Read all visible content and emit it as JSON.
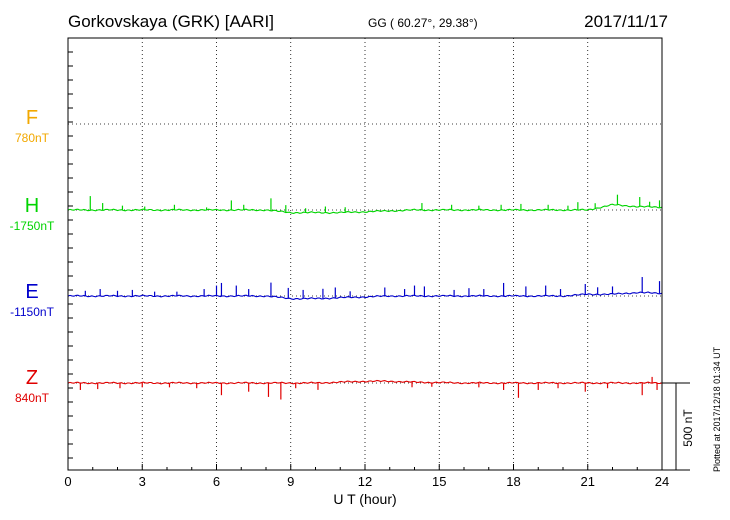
{
  "header": {
    "station": "Gorkovskaya (GRK)  [AARI]",
    "coords": "GG ( 60.27°,  29.38°)",
    "date": "2017/11/17"
  },
  "components": [
    {
      "letter": "F",
      "baseline": "780nT",
      "color": "#f2a800"
    },
    {
      "letter": "H",
      "baseline": "-1750nT",
      "color": "#00d400"
    },
    {
      "letter": "E",
      "baseline": "-1150nT",
      "color": "#0000cc"
    },
    {
      "letter": "Z",
      "baseline": "840nT",
      "color": "#e00000"
    }
  ],
  "scale_bar": "500 nT",
  "plotted_note": "Plotted at 2017/12/18 01:34 UT",
  "chart_data": {
    "type": "line",
    "xlabel": "U T (hour)",
    "xlim": [
      0,
      24
    ],
    "xticks": [
      "0",
      "3",
      "6",
      "9",
      "12",
      "15",
      "18",
      "21",
      "24"
    ],
    "grid": true,
    "series": [
      {
        "name": "F",
        "x": [],
        "values": []
      },
      {
        "name": "H",
        "x": [
          0,
          1,
          2,
          3,
          4,
          5,
          6,
          7,
          8,
          9,
          10,
          11,
          12,
          13,
          14,
          15,
          16,
          17,
          18,
          19,
          20,
          21,
          22,
          23,
          24
        ],
        "values": [
          0,
          0,
          0,
          0,
          0,
          0,
          0,
          0,
          0,
          -15,
          -15,
          -15,
          -10,
          -5,
          0,
          0,
          0,
          0,
          0,
          0,
          0,
          0,
          30,
          20,
          15
        ],
        "spikes": [
          [
            0.9,
            80
          ],
          [
            1.4,
            40
          ],
          [
            2.2,
            25
          ],
          [
            3.1,
            20
          ],
          [
            4.3,
            30
          ],
          [
            5.6,
            15
          ],
          [
            6.6,
            55
          ],
          [
            7.1,
            30
          ],
          [
            8.2,
            70
          ],
          [
            8.8,
            40
          ],
          [
            9.6,
            25
          ],
          [
            10.4,
            35
          ],
          [
            11.2,
            30
          ],
          [
            14.3,
            40
          ],
          [
            15.5,
            30
          ],
          [
            16.6,
            25
          ],
          [
            17.5,
            30
          ],
          [
            18.3,
            35
          ],
          [
            19.4,
            30
          ],
          [
            20.2,
            25
          ],
          [
            20.6,
            45
          ],
          [
            21.3,
            30
          ],
          [
            22.2,
            60
          ],
          [
            23.1,
            55
          ],
          [
            23.5,
            30
          ],
          [
            23.9,
            40
          ]
        ]
      },
      {
        "name": "E",
        "x": [
          0,
          1,
          2,
          3,
          4,
          5,
          6,
          7,
          8,
          9,
          10,
          11,
          12,
          13,
          14,
          15,
          16,
          17,
          18,
          19,
          20,
          21,
          22,
          23,
          24
        ],
        "values": [
          0,
          0,
          0,
          0,
          0,
          0,
          0,
          0,
          0,
          -15,
          -15,
          -10,
          -5,
          0,
          0,
          0,
          0,
          0,
          0,
          0,
          0,
          10,
          10,
          20,
          15
        ],
        "spikes": [
          [
            0.7,
            30
          ],
          [
            1.3,
            40
          ],
          [
            2.0,
            30
          ],
          [
            2.6,
            35
          ],
          [
            3.5,
            25
          ],
          [
            4.4,
            25
          ],
          [
            5.5,
            40
          ],
          [
            6.0,
            60
          ],
          [
            6.2,
            75
          ],
          [
            6.8,
            60
          ],
          [
            7.3,
            40
          ],
          [
            8.2,
            80
          ],
          [
            8.9,
            60
          ],
          [
            9.5,
            50
          ],
          [
            10.3,
            55
          ],
          [
            10.8,
            60
          ],
          [
            11.4,
            35
          ],
          [
            12.8,
            50
          ],
          [
            13.6,
            40
          ],
          [
            14.0,
            60
          ],
          [
            14.4,
            55
          ],
          [
            15.6,
            35
          ],
          [
            16.2,
            45
          ],
          [
            16.8,
            40
          ],
          [
            17.6,
            75
          ],
          [
            18.5,
            55
          ],
          [
            19.3,
            60
          ],
          [
            19.9,
            40
          ],
          [
            20.9,
            60
          ],
          [
            21.4,
            40
          ],
          [
            22.0,
            45
          ],
          [
            23.2,
            90
          ],
          [
            23.9,
            70
          ]
        ]
      },
      {
        "name": "Z",
        "x": [
          0,
          2,
          4,
          6,
          8,
          10,
          11,
          12,
          13,
          14,
          16,
          18,
          20,
          22,
          24
        ],
        "values": [
          0,
          0,
          0,
          0,
          0,
          0,
          5,
          10,
          10,
          5,
          0,
          0,
          0,
          0,
          0
        ],
        "spikes": [
          [
            0.5,
            -40
          ],
          [
            1.2,
            -35
          ],
          [
            2.1,
            -30
          ],
          [
            3.0,
            -25
          ],
          [
            4.1,
            -25
          ],
          [
            5.2,
            -30
          ],
          [
            6.2,
            -70
          ],
          [
            7.3,
            -50
          ],
          [
            8.1,
            -80
          ],
          [
            8.6,
            -95
          ],
          [
            9.2,
            -30
          ],
          [
            10.1,
            -40
          ],
          [
            13.9,
            -30
          ],
          [
            14.7,
            -25
          ],
          [
            16.6,
            -25
          ],
          [
            17.6,
            -40
          ],
          [
            18.2,
            -85
          ],
          [
            19.0,
            -40
          ],
          [
            19.8,
            -30
          ],
          [
            20.9,
            -50
          ],
          [
            21.8,
            -30
          ],
          [
            23.2,
            -70
          ],
          [
            23.8,
            -40
          ],
          [
            23.6,
            35
          ]
        ]
      }
    ],
    "y_unit": "nT"
  }
}
